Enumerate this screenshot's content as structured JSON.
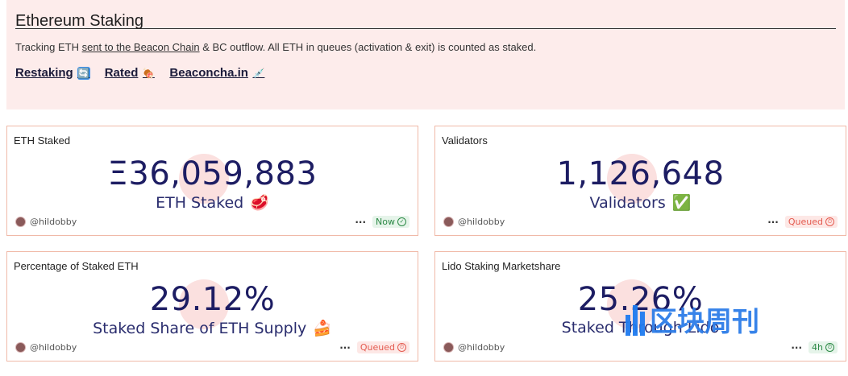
{
  "header": {
    "title": "Ethereum Staking",
    "desc_prefix": "Tracking ETH ",
    "desc_link": "sent to the Beacon Chain",
    "desc_suffix": " & BC outflow. All ETH in queues (activation & exit) is counted as staked.",
    "links": [
      {
        "label": "Restaking",
        "icon": "🔄"
      },
      {
        "label": "Rated",
        "icon": "🍖"
      },
      {
        "label": "Beaconcha.in",
        "icon": "💉"
      }
    ]
  },
  "cards": [
    {
      "title": "ETH Staked",
      "value": "Ξ36,059,883",
      "sub": "ETH Staked",
      "sub_icon": "🥩",
      "author": "@hildobby",
      "status": "Now",
      "status_icon": "✓"
    },
    {
      "title": "Validators",
      "value": "1,126,648",
      "sub": "Validators",
      "sub_icon": "✅",
      "author": "@hildobby",
      "status": "Queued",
      "status_icon": "⏱"
    },
    {
      "title": "Percentage of Staked ETH",
      "value": "29.12%",
      "sub": "Staked Share of ETH Supply",
      "sub_icon": "🍰",
      "author": "@hildobby",
      "status": "Queued",
      "status_icon": "⏱"
    },
    {
      "title": "Lido Staking Marketshare",
      "value": "25.26%",
      "sub": "Staked Through Lido",
      "sub_icon": "",
      "author": "@hildobby",
      "status": "4h",
      "status_icon": "⏱"
    }
  ],
  "more_label": "···",
  "watermark": {
    "text": "区块周刊"
  },
  "colors": {
    "header_bg": "#fdeceb",
    "card_border": "#f0b9a8",
    "value_color": "#1d1d63",
    "now_green": "#2d8a47",
    "queued_red": "#e45b50"
  }
}
